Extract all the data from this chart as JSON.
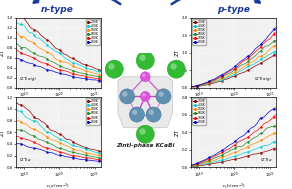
{
  "title": "Zintl-phase KCaBi",
  "n_type_label": "n-type",
  "p_type_label": "p-type",
  "x_label_n": "n_e(cm$^{-3}$)",
  "x_label_p": "n_h(cm$^{-3}$)",
  "y_label": "ZT",
  "temps": [
    "300K",
    "400K",
    "500K",
    "600K",
    "700K",
    "800K"
  ],
  "temp_colors": [
    "#8b0000",
    "#00ced1",
    "#ff8c00",
    "#228b22",
    "#ff0000",
    "#0000cd"
  ],
  "n_xx_yy_label": "(ZT)$_{xx(yy)}$",
  "n_zz_label": "(ZT)$_{zz}$",
  "p_xx_yy_label": "(ZT)$_{xx(yy)}$",
  "p_zz_label": "(ZT)$_{zz}$",
  "n_xx_ylim": [
    0.0,
    1.4
  ],
  "n_zz_ylim": [
    0.0,
    1.2
  ],
  "p_xx_ylim": [
    0.0,
    2.0
  ],
  "p_zz_ylim": [
    0.0,
    0.8
  ],
  "x_range": [
    6e+18,
    1.5e+21
  ],
  "background_color": "#f0f0f0",
  "arrow_color": "#1a3a9c",
  "n_xx_yticks": [
    0.0,
    0.2,
    0.4,
    0.6,
    0.8,
    1.0,
    1.2,
    1.4
  ],
  "n_zz_yticks": [
    0.0,
    0.2,
    0.4,
    0.6,
    0.8,
    1.0,
    1.2
  ],
  "p_xx_yticks": [
    0.0,
    0.5,
    1.0,
    1.5,
    2.0
  ],
  "p_zz_yticks": [
    0.0,
    0.2,
    0.4,
    0.6,
    0.8
  ]
}
